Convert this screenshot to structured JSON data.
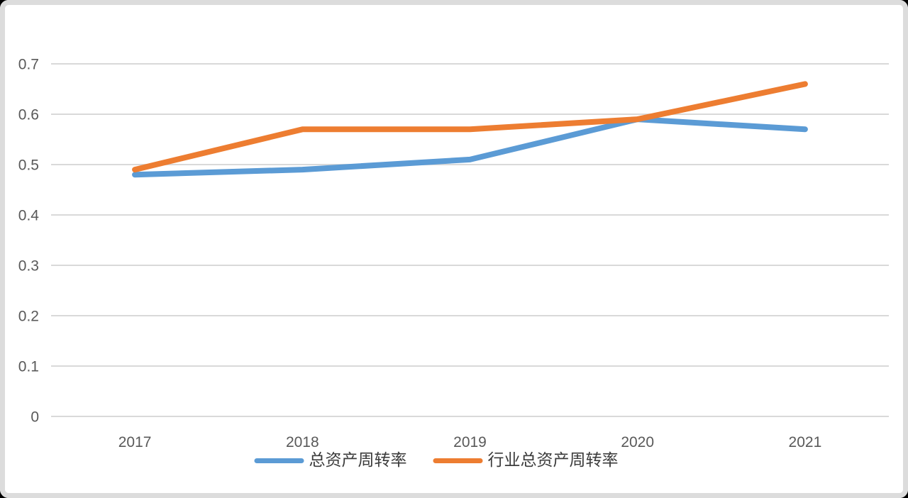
{
  "chart_data": {
    "type": "line",
    "title": "",
    "xlabel": "",
    "ylabel": "",
    "categories": [
      "2017",
      "2018",
      "2019",
      "2020",
      "2021"
    ],
    "series": [
      {
        "name": "总资产周转率",
        "color": "#5B9BD5",
        "values": [
          0.48,
          0.49,
          0.51,
          0.59,
          0.57
        ]
      },
      {
        "name": "行业总资产周转率",
        "color": "#ED7D31",
        "values": [
          0.49,
          0.57,
          0.57,
          0.59,
          0.66
        ]
      }
    ],
    "ylim": [
      0,
      0.7
    ],
    "yticks": [
      0,
      0.1,
      0.2,
      0.3,
      0.4,
      0.5,
      0.6,
      0.7
    ],
    "grid": true,
    "legend_position": "bottom"
  },
  "palette": {
    "grid_color": "#d9d9d9",
    "axis_text_color": "#595959",
    "legend_text_color": "#3b3b3b",
    "card_background": "#ffffff",
    "card_border": "#dcdcdc",
    "page_background": "#000000"
  }
}
